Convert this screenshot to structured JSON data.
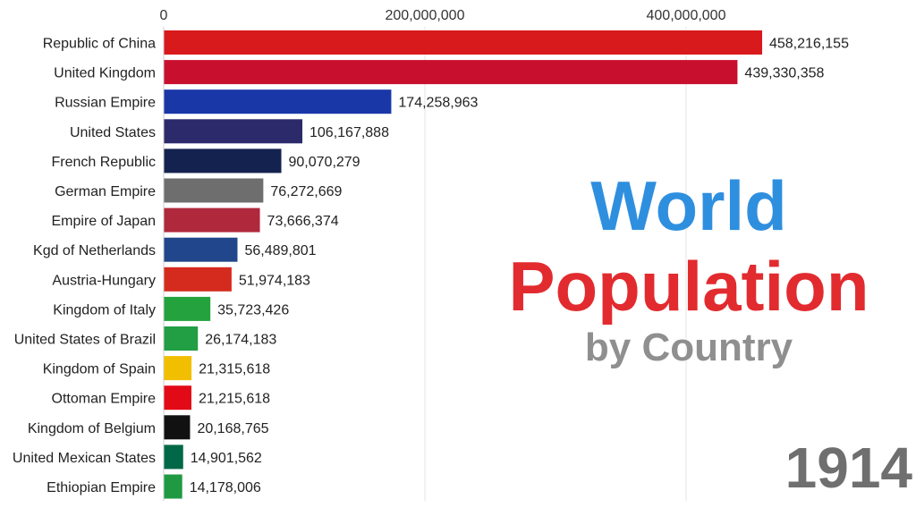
{
  "chart_data": {
    "type": "bar",
    "orientation": "horizontal",
    "categories": [
      "Republic of China",
      "United Kingdom",
      "Russian Empire",
      "United States",
      "French Republic",
      "German Empire",
      "Empire of Japan",
      "Kgd of Netherlands",
      "Austria-Hungary",
      "Kingdom of Italy",
      "United States of Brazil",
      "Kingdom of Spain",
      "Ottoman Empire",
      "Kingdom of Belgium",
      "United Mexican States",
      "Ethiopian Empire"
    ],
    "values": [
      458216155,
      439330358,
      174258963,
      106167888,
      90070279,
      76272669,
      73666374,
      56489801,
      51974183,
      35723426,
      26174183,
      21315618,
      21215618,
      20168765,
      14901562,
      14178006
    ],
    "value_labels": [
      "458,216,155",
      "439,330,358",
      "174,258,963",
      "106,167,888",
      "90,070,279",
      "76,272,669",
      "73,666,374",
      "56,489,801",
      "51,974,183",
      "35,723,426",
      "26,174,183",
      "21,315,618",
      "21,215,618",
      "20,168,765",
      "14,901,562",
      "14,178,006"
    ],
    "colors": [
      "#d91a1c",
      "#c8102e",
      "#1a37a8",
      "#2c2a6b",
      "#14224f",
      "#6e6e6e",
      "#b0283c",
      "#21468b",
      "#d52b1e",
      "#24a23e",
      "#229e45",
      "#f1bf00",
      "#e30a17",
      "#111111",
      "#006847",
      "#1f9a43"
    ],
    "xticks": [
      0,
      200000000,
      400000000
    ],
    "xtick_labels": [
      "0",
      "200,000,000",
      "400,000,000"
    ],
    "xlim": [
      0,
      480000000
    ],
    "grid": true
  },
  "titles": {
    "line1": "World",
    "line2": "Population",
    "line3": "by Country"
  },
  "year": "1914"
}
